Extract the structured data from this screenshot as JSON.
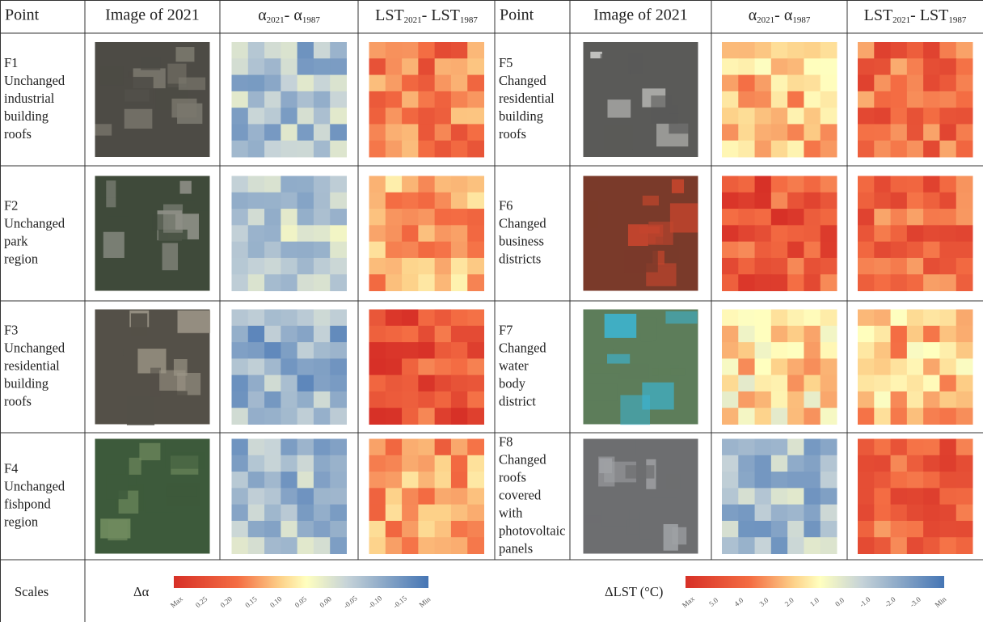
{
  "header": {
    "columns": [
      "Point",
      "Image of 2021",
      {
        "a": "α",
        "a_sub": "2021",
        "sep": "- α",
        "b_sub": "1987"
      },
      {
        "a": "LST",
        "a_sub": "2021",
        "sep": "- LST",
        "b_sub": "1987"
      },
      "Point",
      "Image of 2021",
      {
        "a": "α",
        "a_sub": "2021",
        "sep": "- α",
        "b_sub": "1987"
      },
      {
        "a": "LST",
        "a_sub": "2021",
        "sep": "- LST",
        "b_sub": "1987"
      }
    ]
  },
  "rows": [
    {
      "left": {
        "id": "F1",
        "lines": [
          "Unchanged",
          "industrial",
          "building",
          "roofs"
        ]
      },
      "right": {
        "id": "F5",
        "lines": [
          "Changed",
          "residential",
          "building",
          "roofs"
        ]
      }
    },
    {
      "left": {
        "id": "F2",
        "lines": [
          "Unchanged",
          "park",
          "region"
        ]
      },
      "right": {
        "id": "F6",
        "lines": [
          "Changed",
          "business",
          "districts"
        ]
      }
    },
    {
      "left": {
        "id": "F3",
        "lines": [
          "Unchanged",
          "residential",
          "building",
          "roofs"
        ]
      },
      "right": {
        "id": "F7",
        "lines": [
          "Changed",
          "water",
          "body",
          "district"
        ]
      }
    },
    {
      "left": {
        "id": "F4",
        "lines": [
          "Unchanged",
          "fishpond",
          "region"
        ]
      },
      "right": {
        "id": "F8",
        "lines": [
          "Changed",
          "roofs",
          "covered",
          "with",
          "photovoltaic",
          "panels"
        ]
      }
    }
  ],
  "scales": {
    "label": "Scales",
    "albedo": {
      "title": "Δα",
      "ticks": [
        "Max",
        "0.25",
        "0.20",
        "0.15",
        "0.10",
        "0.05",
        "0.00",
        "-0.05",
        "-0.10",
        "-0.15",
        "Min"
      ]
    },
    "lst": {
      "title": "ΔLST (°C)",
      "ticks": [
        "Max",
        "5.0",
        "4.0",
        "3.0",
        "2.0",
        "1.0",
        "0.0",
        "-1.0",
        "-2.0",
        "-3.0",
        "Min"
      ]
    }
  }
}
